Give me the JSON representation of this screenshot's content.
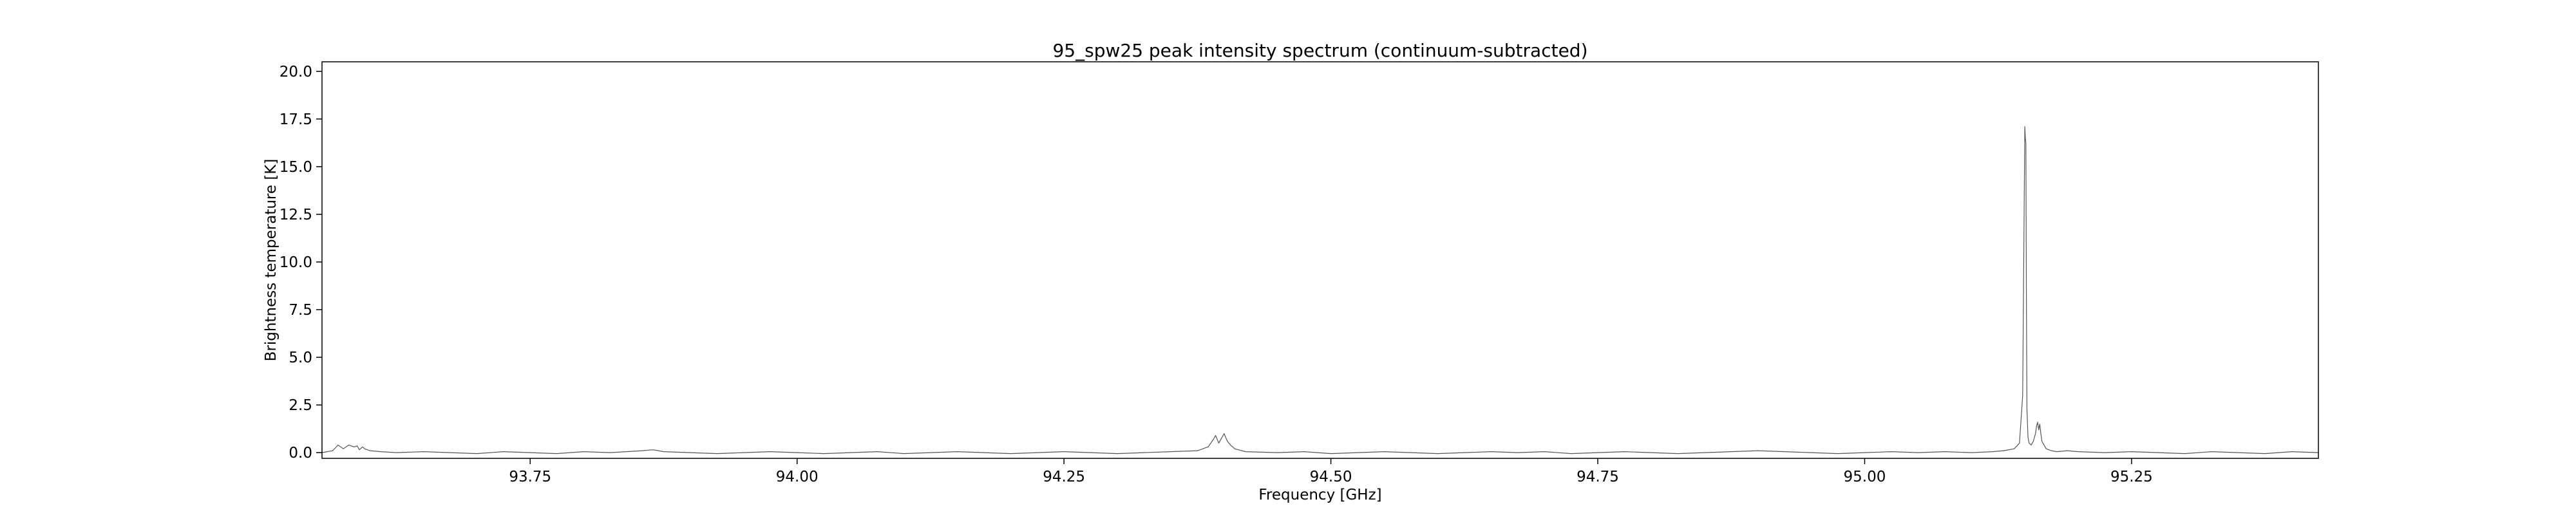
{
  "chart_data": {
    "type": "line",
    "title": "95_spw25 peak intensity spectrum (continuum-subtracted)",
    "xlabel": "Frequency [GHz]",
    "ylabel": "Brightness temperature [K]",
    "xlim": [
      93.555,
      95.425
    ],
    "ylim": [
      -0.3,
      20.5
    ],
    "xticks": [
      93.75,
      94.0,
      94.25,
      94.5,
      94.75,
      95.0,
      95.25
    ],
    "xtick_labels": [
      "93.75",
      "94.00",
      "94.25",
      "94.50",
      "94.75",
      "95.00",
      "95.25"
    ],
    "yticks": [
      0.0,
      2.5,
      5.0,
      7.5,
      10.0,
      12.5,
      15.0,
      17.5,
      20.0
    ],
    "ytick_labels": [
      "0.0",
      "2.5",
      "5.0",
      "7.5",
      "10.0",
      "12.5",
      "15.0",
      "17.5",
      "20.0"
    ],
    "grid": false,
    "legend": "none",
    "line_color": "#555555",
    "series": [
      {
        "x": [
          93.555,
          93.565,
          93.57,
          93.575,
          93.58,
          93.585,
          93.588,
          93.59,
          93.593,
          93.595,
          93.6,
          93.61,
          93.625,
          93.65,
          93.675,
          93.7,
          93.725,
          93.75,
          93.775,
          93.8,
          93.825,
          93.855,
          93.865,
          93.875,
          93.9,
          93.925,
          93.95,
          93.975,
          94.0,
          94.025,
          94.05,
          94.075,
          94.1,
          94.125,
          94.15,
          94.175,
          94.2,
          94.225,
          94.25,
          94.275,
          94.3,
          94.325,
          94.35,
          94.375,
          94.385,
          94.39,
          94.392,
          94.395,
          94.398,
          94.4,
          94.403,
          94.406,
          94.41,
          94.42,
          94.45,
          94.475,
          94.5,
          94.525,
          94.55,
          94.575,
          94.6,
          94.625,
          94.65,
          94.675,
          94.7,
          94.725,
          94.75,
          94.775,
          94.8,
          94.825,
          94.85,
          94.875,
          94.9,
          94.925,
          94.95,
          94.975,
          95.0,
          95.025,
          95.05,
          95.075,
          95.1,
          95.12,
          95.13,
          95.14,
          95.145,
          95.148,
          95.15,
          95.1505,
          95.151,
          95.1515,
          95.152,
          95.153,
          95.154,
          95.156,
          95.158,
          95.16,
          95.161,
          95.162,
          95.163,
          95.164,
          95.165,
          95.166,
          95.168,
          95.17,
          95.175,
          95.18,
          95.19,
          95.2,
          95.225,
          95.25,
          95.275,
          95.3,
          95.325,
          95.35,
          95.375,
          95.4,
          95.425
        ],
        "y": [
          0.0,
          0.1,
          0.4,
          0.2,
          0.4,
          0.3,
          0.35,
          0.15,
          0.3,
          0.2,
          0.1,
          0.05,
          0.0,
          0.05,
          0.0,
          -0.05,
          0.05,
          0.0,
          -0.05,
          0.05,
          0.0,
          0.1,
          0.15,
          0.05,
          0.0,
          -0.05,
          0.0,
          0.05,
          0.0,
          -0.05,
          0.0,
          0.05,
          -0.05,
          0.0,
          0.05,
          0.0,
          -0.05,
          0.0,
          0.05,
          0.0,
          -0.05,
          0.0,
          0.05,
          0.1,
          0.3,
          0.7,
          0.9,
          0.5,
          0.8,
          1.0,
          0.6,
          0.4,
          0.2,
          0.05,
          0.0,
          0.05,
          -0.05,
          0.0,
          0.05,
          0.0,
          -0.05,
          0.0,
          0.05,
          0.0,
          0.05,
          -0.05,
          0.0,
          0.05,
          0.0,
          -0.05,
          0.0,
          0.05,
          0.1,
          0.05,
          0.0,
          -0.05,
          0.0,
          0.05,
          0.0,
          0.05,
          0.0,
          0.05,
          0.1,
          0.2,
          0.5,
          3.0,
          17.1,
          16.5,
          16.2,
          8.0,
          2.3,
          0.8,
          0.5,
          0.4,
          0.6,
          1.0,
          1.4,
          1.6,
          1.2,
          1.5,
          1.0,
          0.6,
          0.4,
          0.2,
          0.1,
          0.05,
          0.1,
          0.05,
          0.0,
          0.05,
          0.0,
          -0.05,
          0.05,
          0.0,
          -0.05,
          0.05,
          0.0
        ]
      }
    ]
  }
}
